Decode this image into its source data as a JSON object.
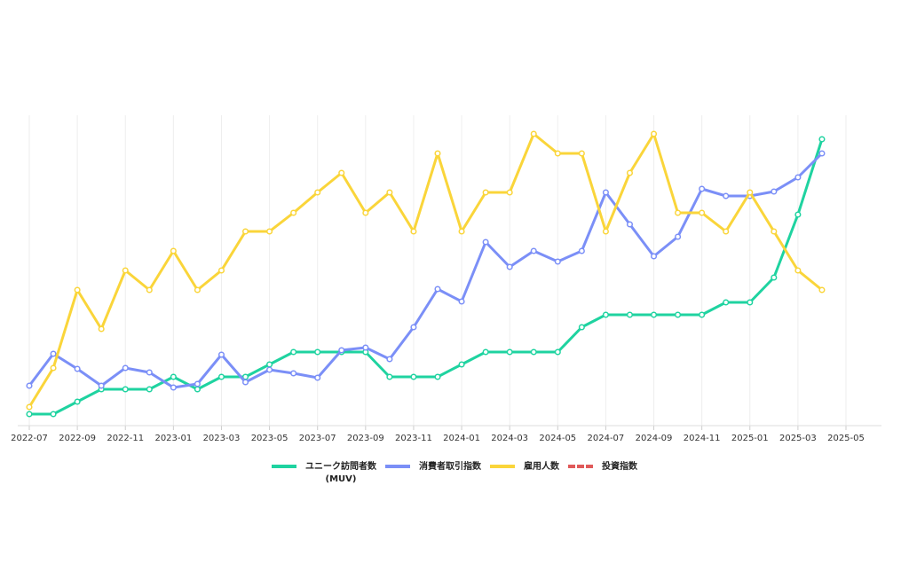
{
  "chart_data": {
    "type": "line",
    "x": [
      "2022-07",
      "2022-08",
      "2022-09",
      "2022-10",
      "2022-11",
      "2022-12",
      "2023-01",
      "2023-02",
      "2023-03",
      "2023-04",
      "2023-05",
      "2023-06",
      "2023-07",
      "2023-08",
      "2023-09",
      "2023-10",
      "2023-11",
      "2023-12",
      "2024-01",
      "2024-02",
      "2024-03",
      "2024-04",
      "2024-05",
      "2024-06",
      "2024-07",
      "2024-08",
      "2024-09",
      "2024-10",
      "2024-11",
      "2024-12",
      "2025-01",
      "2025-02",
      "2025-03",
      "2025-04"
    ],
    "xlim": [
      "2022-07",
      "2025-05"
    ],
    "xticks": [
      "2022-07",
      "2022-09",
      "2022-11",
      "2023-01",
      "2023-03",
      "2023-05",
      "2023-07",
      "2023-09",
      "2023-11",
      "2024-01",
      "2024-03",
      "2024-05",
      "2024-07",
      "2024-09",
      "2024-11",
      "2025-01",
      "2025-03",
      "2025-05"
    ],
    "ylim": [
      0,
      350
    ],
    "grid": true,
    "series": [
      {
        "name": "ユニーク訪問者数\n(MUV)",
        "color": "#1fd3a0",
        "values": [
          13,
          13,
          27,
          41,
          41,
          41,
          55,
          41,
          55,
          55,
          69,
          83,
          83,
          83,
          83,
          55,
          55,
          55,
          69,
          83,
          83,
          83,
          83,
          111,
          125,
          125,
          125,
          125,
          125,
          139,
          139,
          167,
          238,
          323
        ]
      },
      {
        "name": "消費者取引指数",
        "color": "#7b8ff7",
        "values": [
          45,
          81,
          64,
          45,
          65,
          60,
          43,
          47,
          80,
          49,
          63,
          59,
          54,
          85,
          88,
          75,
          111,
          154,
          140,
          207,
          179,
          197,
          185,
          197,
          263,
          227,
          191,
          213,
          267,
          259,
          259,
          264,
          280,
          307
        ]
      },
      {
        "name": "雇用人数",
        "color": "#fad53a",
        "values": [
          21,
          65,
          153,
          109,
          175,
          153,
          197,
          153,
          175,
          219,
          219,
          240,
          263,
          285,
          240,
          263,
          219,
          307,
          219,
          263,
          263,
          329,
          307,
          307,
          219,
          285,
          329,
          240,
          240,
          219,
          263,
          219,
          175,
          153
        ]
      },
      {
        "name": "投資指数",
        "color": "#e05a5a",
        "dashed": true,
        "values": [
          null,
          null,
          null,
          null,
          null,
          null,
          null,
          null,
          null,
          null,
          null,
          null,
          null,
          null,
          null,
          null,
          null,
          null,
          null,
          null,
          null,
          null,
          null,
          null,
          null,
          null,
          null,
          null,
          null,
          null,
          null,
          null,
          null,
          null
        ]
      }
    ]
  }
}
